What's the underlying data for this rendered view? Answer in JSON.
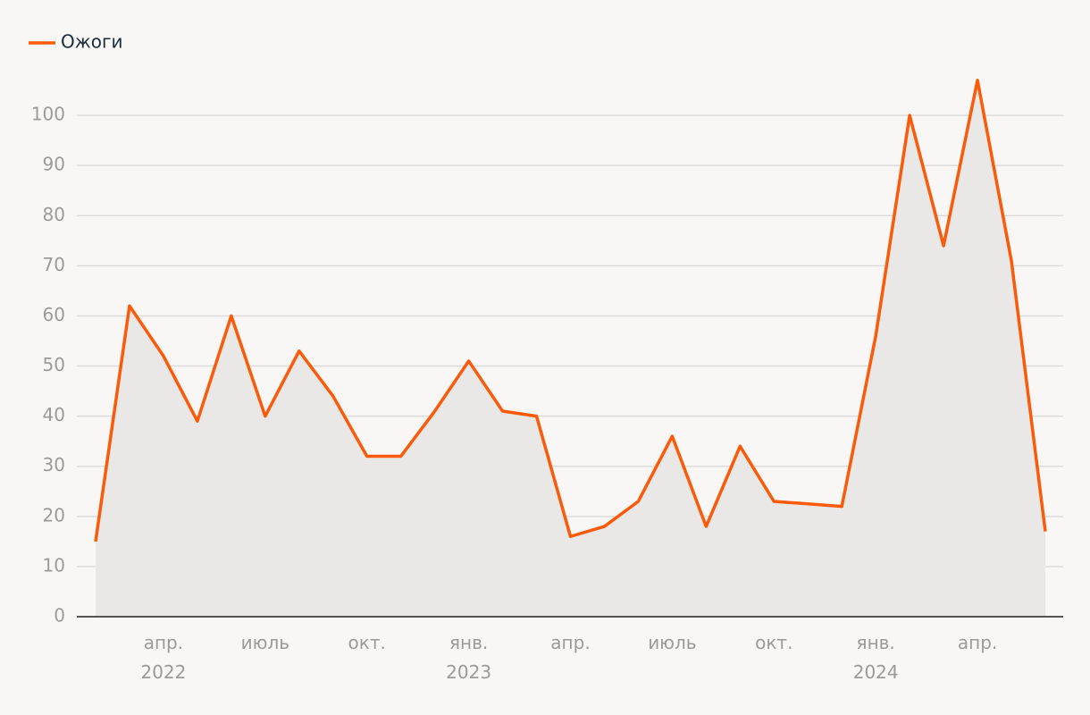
{
  "chart_data": {
    "type": "line",
    "categories": [
      null,
      null,
      "апр. 2022",
      null,
      null,
      "июль",
      null,
      null,
      "окт.",
      null,
      null,
      "янв. 2023",
      null,
      null,
      "апр.",
      null,
      null,
      "июль",
      null,
      null,
      "окт.",
      null,
      null,
      "янв. 2024",
      null,
      null,
      "апр.",
      null,
      null
    ],
    "series": [
      {
        "name": "Ожоги",
        "color": "#fa5a0a",
        "values": [
          15,
          62,
          52,
          39,
          60,
          40,
          53,
          44,
          32,
          32,
          41,
          51,
          41,
          40,
          16,
          18,
          23,
          36,
          18,
          34,
          23,
          22.5,
          22,
          56,
          100,
          74,
          107,
          71,
          17
        ]
      }
    ],
    "area_color": "#e9e8e6",
    "ylim": [
      0,
      110
    ],
    "yticks": [
      0,
      10,
      20,
      30,
      40,
      50,
      60,
      70,
      80,
      90,
      100
    ],
    "grid": true,
    "legend": "top-left"
  }
}
